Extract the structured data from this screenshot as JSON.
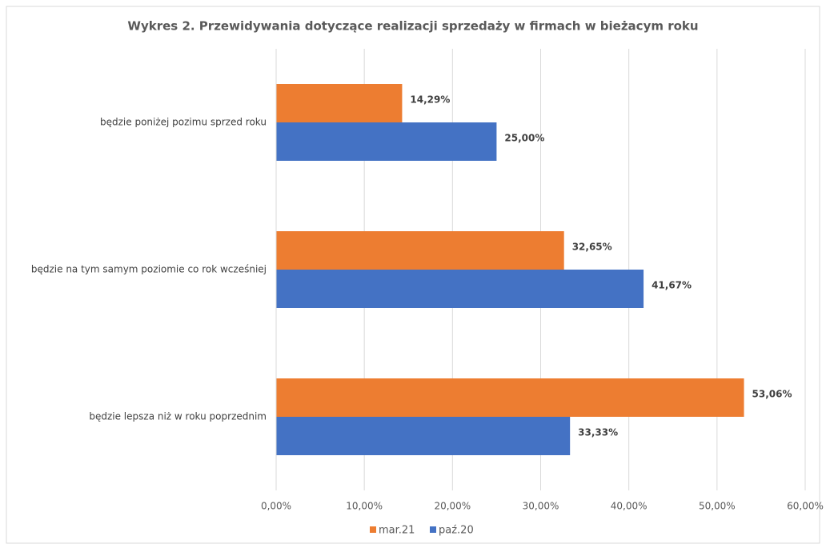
{
  "chart_data": {
    "type": "hbar",
    "title": "Wykres 2. Przewidywania dotyczące realizacji sprzedaży w firmach w bieżacym roku",
    "categories": [
      "będzie poniżej pozimu sprzed roku",
      "będzie na tym samym poziomie co rok wcześniej",
      "będzie lepsza niż w roku poprzednim"
    ],
    "series": [
      {
        "name": "mar.21",
        "color": "#ed7d31",
        "values": [
          14.29,
          32.65,
          53.06
        ],
        "value_labels": [
          "14,29%",
          "32,65%",
          "53,06%"
        ]
      },
      {
        "name": "paź.20",
        "color": "#4472c4",
        "values": [
          25.0,
          41.67,
          33.33
        ],
        "value_labels": [
          "25,00%",
          "41,67%",
          "33,33%"
        ]
      }
    ],
    "xlim": [
      0,
      60
    ],
    "xticks": [
      {
        "value": 0,
        "label": "0,00%"
      },
      {
        "value": 10,
        "label": "10,00%"
      },
      {
        "value": 20,
        "label": "20,00%"
      },
      {
        "value": 30,
        "label": "30,00%"
      },
      {
        "value": 40,
        "label": "40,00%"
      },
      {
        "value": 50,
        "label": "50,00%"
      },
      {
        "value": 60,
        "label": "60,00%"
      }
    ],
    "grid": true,
    "legend": "bottom"
  }
}
